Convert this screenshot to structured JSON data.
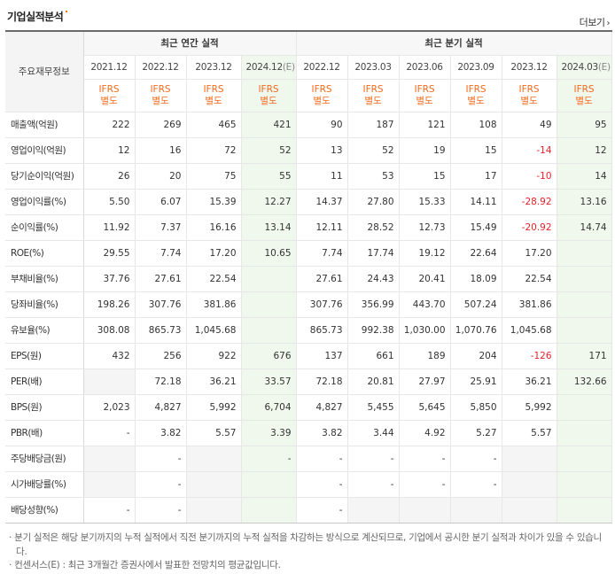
{
  "title": "기업실적분석",
  "more_label": "더보기",
  "table": {
    "row_header": "주요재무정보",
    "annual_group": "최근 연간 실적",
    "quarter_group": "최근 분기 실적",
    "periods": [
      {
        "label": "2021.12",
        "est": false
      },
      {
        "label": "2022.12",
        "est": false
      },
      {
        "label": "2023.12",
        "est": false
      },
      {
        "label": "2024.12",
        "est": true,
        "est_mark": "(E)"
      },
      {
        "label": "2022.12",
        "est": false
      },
      {
        "label": "2023.03",
        "est": false
      },
      {
        "label": "2023.06",
        "est": false
      },
      {
        "label": "2023.09",
        "est": false
      },
      {
        "label": "2023.12",
        "est": false
      },
      {
        "label": "2024.03",
        "est": true,
        "est_mark": "(E)"
      }
    ],
    "basis_line1": "IFRS",
    "basis_line2": "별도",
    "rows": [
      {
        "label": "매출액(억원)",
        "sep": true,
        "values": [
          "222",
          "269",
          "465",
          "421",
          "90",
          "187",
          "121",
          "108",
          "49",
          "95"
        ]
      },
      {
        "label": "영업이익(억원)",
        "sep": false,
        "values": [
          "12",
          "16",
          "72",
          "52",
          "13",
          "52",
          "19",
          "15",
          "-14",
          "12"
        ]
      },
      {
        "label": "당기순이익(억원)",
        "sep": false,
        "values": [
          "26",
          "20",
          "75",
          "55",
          "11",
          "53",
          "15",
          "17",
          "-10",
          "14"
        ]
      },
      {
        "label": "영업이익률(%)",
        "sep": true,
        "values": [
          "5.50",
          "6.07",
          "15.39",
          "12.27",
          "14.37",
          "27.80",
          "15.33",
          "14.11",
          "-28.92",
          "13.16"
        ]
      },
      {
        "label": "순이익률(%)",
        "sep": false,
        "values": [
          "11.92",
          "7.37",
          "16.16",
          "13.14",
          "12.11",
          "28.52",
          "12.73",
          "15.49",
          "-20.92",
          "14.74"
        ]
      },
      {
        "label": "ROE(%)",
        "sep": false,
        "values": [
          "29.55",
          "7.74",
          "17.20",
          "10.65",
          "7.74",
          "17.74",
          "19.12",
          "22.64",
          "17.20",
          ""
        ]
      },
      {
        "label": "부채비율(%)",
        "sep": true,
        "values": [
          "37.76",
          "27.61",
          "22.54",
          "",
          "27.61",
          "24.43",
          "20.41",
          "18.09",
          "22.54",
          ""
        ]
      },
      {
        "label": "당좌비율(%)",
        "sep": false,
        "values": [
          "198.26",
          "307.76",
          "381.86",
          "",
          "307.76",
          "356.99",
          "443.70",
          "507.24",
          "381.86",
          ""
        ]
      },
      {
        "label": "유보율(%)",
        "sep": false,
        "values": [
          "308.08",
          "865.73",
          "1,045.68",
          "",
          "865.73",
          "992.38",
          "1,030.00",
          "1,070.76",
          "1,045.68",
          ""
        ]
      },
      {
        "label": "EPS(원)",
        "sep": true,
        "values": [
          "432",
          "256",
          "922",
          "676",
          "137",
          "661",
          "189",
          "204",
          "-126",
          "171"
        ]
      },
      {
        "label": "PER(배)",
        "sep": false,
        "values": [
          "",
          "72.18",
          "36.21",
          "33.57",
          "72.18",
          "20.81",
          "27.97",
          "25.91",
          "36.21",
          "132.66"
        ]
      },
      {
        "label": "BPS(원)",
        "sep": false,
        "values": [
          "2,023",
          "4,827",
          "5,992",
          "6,704",
          "4,827",
          "5,455",
          "5,645",
          "5,850",
          "5,992",
          ""
        ]
      },
      {
        "label": "PBR(배)",
        "sep": false,
        "values": [
          "-",
          "3.82",
          "5.57",
          "3.39",
          "3.82",
          "3.44",
          "4.92",
          "5.27",
          "5.57",
          ""
        ]
      },
      {
        "label": "주당배당금(원)",
        "sep": true,
        "values": [
          "",
          "-",
          "",
          "-",
          "-",
          "-",
          "-",
          "-",
          "",
          ""
        ]
      },
      {
        "label": "시가배당률(%)",
        "sep": false,
        "values": [
          "",
          "-",
          "",
          "",
          "-",
          "-",
          "-",
          "-",
          "",
          ""
        ]
      },
      {
        "label": "배당성향(%)",
        "sep": false,
        "values": [
          "-",
          "-",
          "",
          "",
          "-",
          "",
          "",
          "",
          "",
          ""
        ]
      }
    ]
  },
  "notes": [
    "분기 실적은 해당 분기까지의 누적 실적에서 직전 분기까지의 누적 실적을 차감하는 방식으로 계산되므로, 기업에서 공시한 분기 실적과 차이가 있을 수 있습니다.",
    "컨센서스(E) : 최근 3개월간 증권사에서 발표한 전망치의 평균값입니다."
  ],
  "colors": {
    "negative": "#e8202a",
    "basis": "#f5691b",
    "estimate_bg": "#f0f8ee"
  }
}
